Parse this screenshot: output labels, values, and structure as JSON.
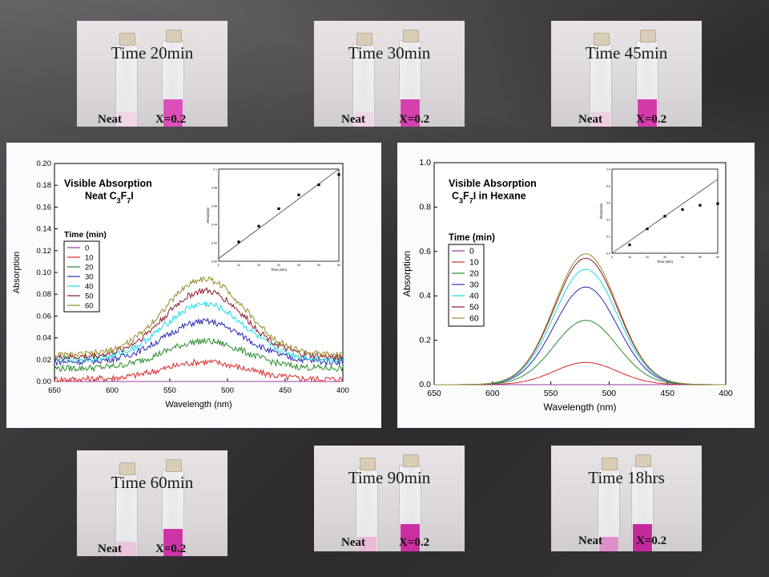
{
  "photos": [
    {
      "title": "Time 20min",
      "neat": "Neat",
      "x": "X=0.2",
      "neat_color": "#f0d6e6",
      "x_color": "#dd4fb8",
      "x_level": 0.35
    },
    {
      "title": "Time 30min",
      "neat": "Neat",
      "x": "X=0.2",
      "neat_color": "#f0d6e6",
      "x_color": "#d63fae",
      "x_level": 0.35
    },
    {
      "title": "Time 45min",
      "neat": "Neat",
      "x": "X=0.2",
      "neat_color": "#eed0e2",
      "x_color": "#d43aaa",
      "x_level": 0.35
    },
    {
      "title": "Time 60min",
      "neat": "Neat",
      "x": "X=0.2",
      "neat_color": "#ebc4dd",
      "x_color": "#cf34a6",
      "x_level": 0.35
    },
    {
      "title": "Time 90min",
      "neat": "Neat",
      "x": "X=0.2",
      "neat_color": "#e8bcd8",
      "x_color": "#ca2fa1",
      "x_level": 0.35
    },
    {
      "title": "Time 18hrs",
      "neat": "Neat",
      "x": "X=0.2",
      "neat_color": "#dd8fc9",
      "x_color": "#c22a9c",
      "x_level": 0.35
    }
  ],
  "chart_data": [
    {
      "type": "line",
      "title_line1": "Visible Absorption",
      "title_line2": "Neat C3F7I",
      "xlabel": "Wavelength (nm)",
      "ylabel": "Absorption",
      "xlim": [
        650,
        400
      ],
      "ylim": [
        0,
        0.2
      ],
      "xticks": [
        650,
        600,
        550,
        500,
        450,
        400
      ],
      "yticks": [
        0.0,
        0.02,
        0.04,
        0.06,
        0.08,
        0.1,
        0.12,
        0.14,
        0.16,
        0.18,
        0.2
      ],
      "ytick_labels": [
        "0.00",
        "0.02",
        "0.04",
        "0.06",
        "0.08",
        "0.10",
        "0.12",
        "0.14",
        "0.16",
        "0.18",
        "0.20"
      ],
      "legend_title": "Time (min)",
      "legend_position": "left",
      "noisy": true,
      "series": [
        {
          "name": "0",
          "color": "#9a3aa8",
          "peak_wavelength": 520,
          "peak": 0.0,
          "baseline": 0.0
        },
        {
          "name": "10",
          "color": "#d62a2a",
          "peak_wavelength": 520,
          "peak": 0.018,
          "baseline": 0.002
        },
        {
          "name": "20",
          "color": "#2a8a2a",
          "peak_wavelength": 520,
          "peak": 0.037,
          "baseline": 0.012
        },
        {
          "name": "30",
          "color": "#2a2ab0",
          "peak_wavelength": 520,
          "peak": 0.055,
          "baseline": 0.018
        },
        {
          "name": "40",
          "color": "#18d8e8",
          "peak_wavelength": 520,
          "peak": 0.071,
          "baseline": 0.02
        },
        {
          "name": "50",
          "color": "#8a1a2a",
          "peak_wavelength": 520,
          "peak": 0.083,
          "baseline": 0.022
        },
        {
          "name": "60",
          "color": "#9a8a28",
          "peak_wavelength": 520,
          "peak": 0.094,
          "baseline": 0.024
        }
      ],
      "inset": {
        "xlabel": "Time (min)",
        "ylabel": "Absorption",
        "xlim": [
          0,
          60
        ],
        "ylim": [
          0,
          0.1
        ],
        "xticks": [
          0,
          10,
          20,
          30,
          40,
          50,
          60
        ],
        "yticks": [
          0.0,
          0.02,
          0.04,
          0.06,
          0.08,
          0.1
        ],
        "ytick_labels": [
          "0.00",
          "0.02",
          "0.04",
          "0.06",
          "0.08",
          "0.1"
        ],
        "points": [
          [
            10,
            0.021
          ],
          [
            20,
            0.038
          ],
          [
            30,
            0.057
          ],
          [
            40,
            0.072
          ],
          [
            50,
            0.083
          ],
          [
            60,
            0.094
          ]
        ],
        "fit": [
          [
            0,
            0.003
          ],
          [
            60,
            0.1
          ]
        ]
      }
    },
    {
      "type": "line",
      "title_line1": "Visible Absorption",
      "title_line2": "C3F7I in Hexane",
      "xlabel": "Wavelength (nm)",
      "ylabel": "Absorption",
      "xlim": [
        650,
        400
      ],
      "ylim": [
        0,
        1.0
      ],
      "xticks": [
        650,
        600,
        550,
        500,
        450,
        400
      ],
      "yticks": [
        0.0,
        0.2,
        0.4,
        0.6,
        0.8,
        1.0
      ],
      "ytick_labels": [
        "0.0",
        "0.2",
        "0.4",
        "0.6",
        "0.8",
        "1.0"
      ],
      "legend_title": "Time (min)",
      "legend_position": "left",
      "noisy": false,
      "series": [
        {
          "name": "0",
          "color": "#9a3aa8",
          "peak_wavelength": 520,
          "peak": 0.0,
          "baseline": 0.0
        },
        {
          "name": "10",
          "color": "#d62a2a",
          "peak_wavelength": 520,
          "peak": 0.1,
          "baseline": 0.0
        },
        {
          "name": "20",
          "color": "#2a8a2a",
          "peak_wavelength": 520,
          "peak": 0.29,
          "baseline": 0.0
        },
        {
          "name": "30",
          "color": "#2a2ab0",
          "peak_wavelength": 520,
          "peak": 0.44,
          "baseline": 0.0
        },
        {
          "name": "40",
          "color": "#18d8e8",
          "peak_wavelength": 520,
          "peak": 0.52,
          "baseline": 0.0
        },
        {
          "name": "50",
          "color": "#8a1a2a",
          "peak_wavelength": 520,
          "peak": 0.57,
          "baseline": 0.0
        },
        {
          "name": "60",
          "color": "#9a8a28",
          "peak_wavelength": 520,
          "peak": 0.59,
          "baseline": 0.0
        }
      ],
      "inset": {
        "xlabel": "Time (min)",
        "ylabel": "Absorption",
        "xlim": [
          0,
          60
        ],
        "ylim": [
          0,
          1.0
        ],
        "xticks": [
          0,
          10,
          20,
          30,
          40,
          50,
          60
        ],
        "yticks": [
          0.0,
          0.2,
          0.4,
          0.6,
          0.8,
          1.0
        ],
        "ytick_labels": [
          "0.0",
          "0.2",
          "0.4",
          "0.6",
          "0.8",
          "1.0"
        ],
        "points": [
          [
            10,
            0.1
          ],
          [
            20,
            0.29
          ],
          [
            30,
            0.44
          ],
          [
            40,
            0.52
          ],
          [
            50,
            0.57
          ],
          [
            60,
            0.59
          ]
        ],
        "fit": [
          [
            0,
            0.0
          ],
          [
            60,
            0.88
          ]
        ]
      }
    }
  ]
}
